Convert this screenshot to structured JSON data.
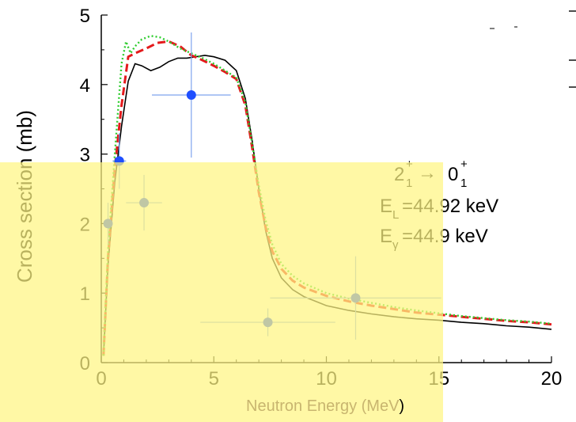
{
  "chart_data": {
    "type": "line",
    "title": "",
    "xlabel": "Neutron Energy (MeV)",
    "ylabel": "Cross section (mb)",
    "xlim": [
      0,
      20
    ],
    "ylim": [
      0,
      5
    ],
    "x_ticks": [
      "0",
      "5",
      "10",
      "15",
      "20"
    ],
    "y_ticks": [
      "0",
      "1",
      "2",
      "3",
      "4",
      "5"
    ],
    "grid": false,
    "annotation": {
      "transition_main": "2",
      "transition_main_sub": "1",
      "transition_main_sup": "+",
      "arrow": "→",
      "transition_final": "0",
      "transition_final_sub": "1",
      "transition_final_sup": "+",
      "level_prefix": "E",
      "level_sub": "L",
      "level_value": "=44.92 keV",
      "gamma_prefix": "E",
      "gamma_sub": "γ",
      "gamma_value": "=44.9 keV"
    },
    "series": [
      {
        "style": "solid",
        "color": "#000000",
        "x": [
          0.1,
          0.3,
          0.6,
          0.9,
          1.2,
          1.5,
          1.8,
          2.2,
          2.6,
          3.0,
          3.4,
          3.8,
          4.2,
          4.6,
          5.0,
          5.5,
          6.0,
          6.4,
          6.7,
          7.0,
          7.3,
          7.6,
          8.0,
          8.5,
          9.0,
          10.0,
          11.0,
          12.0,
          13.0,
          14.0,
          15.0,
          16.0,
          17.0,
          18.0,
          19.0,
          20.0
        ],
        "y": [
          0.1,
          1.4,
          2.6,
          3.4,
          4.05,
          4.3,
          4.27,
          4.2,
          4.25,
          4.33,
          4.38,
          4.38,
          4.4,
          4.42,
          4.4,
          4.35,
          4.2,
          3.8,
          3.2,
          2.5,
          1.9,
          1.5,
          1.22,
          1.05,
          0.95,
          0.82,
          0.75,
          0.7,
          0.66,
          0.63,
          0.61,
          0.58,
          0.56,
          0.53,
          0.51,
          0.48
        ]
      },
      {
        "style": "dashed",
        "color": "#e41a1c",
        "x": [
          0.1,
          0.3,
          0.6,
          0.9,
          1.2,
          1.5,
          2.0,
          2.5,
          3.0,
          3.5,
          4.0,
          4.5,
          5.0,
          5.5,
          6.0,
          6.4,
          6.7,
          7.0,
          7.3,
          7.6,
          8.0,
          8.5,
          9.0,
          10.0,
          11.0,
          12.0,
          13.0,
          14.0,
          15.0,
          16.0,
          17.0,
          18.0,
          19.0,
          20.0
        ],
        "y": [
          0.1,
          1.5,
          2.8,
          3.7,
          4.4,
          4.45,
          4.52,
          4.6,
          4.62,
          4.55,
          4.42,
          4.35,
          4.27,
          4.18,
          4.08,
          3.7,
          3.1,
          2.45,
          1.95,
          1.6,
          1.35,
          1.18,
          1.08,
          0.96,
          0.88,
          0.82,
          0.77,
          0.72,
          0.69,
          0.66,
          0.63,
          0.6,
          0.58,
          0.55
        ]
      },
      {
        "style": "dotted",
        "color": "#2ecc2e",
        "x": [
          0.1,
          0.3,
          0.6,
          0.9,
          1.1,
          1.3,
          1.5,
          1.8,
          2.2,
          2.6,
          3.0,
          3.5,
          4.0,
          4.5,
          5.0,
          5.5,
          6.0,
          6.4,
          6.7,
          7.0,
          7.3,
          7.6,
          8.0,
          8.5,
          9.0,
          10.0,
          11.0,
          12.0,
          13.0,
          14.0,
          15.0,
          16.0,
          17.0,
          18.0,
          19.0,
          20.0
        ],
        "y": [
          0.1,
          1.6,
          3.0,
          4.3,
          4.62,
          4.45,
          4.55,
          4.65,
          4.7,
          4.68,
          4.62,
          4.52,
          4.45,
          4.38,
          4.3,
          4.2,
          4.1,
          3.75,
          3.15,
          2.55,
          2.05,
          1.7,
          1.42,
          1.25,
          1.14,
          1.0,
          0.92,
          0.86,
          0.8,
          0.75,
          0.71,
          0.67,
          0.64,
          0.61,
          0.59,
          0.56
        ]
      }
    ],
    "points": [
      {
        "x": 0.3,
        "y": 2.0,
        "xerr": 0.2,
        "yerr": 0.3,
        "color": "#1f4fff"
      },
      {
        "x": 0.8,
        "y": 2.9,
        "xerr": 0.3,
        "yerr": 0.4,
        "color": "#1f4fff"
      },
      {
        "x": 1.9,
        "y": 2.3,
        "xerr": 0.8,
        "yerr": 0.4,
        "color": "#1f4fff"
      },
      {
        "x": 4.0,
        "y": 3.85,
        "xerr": 1.75,
        "yerr": 0.9,
        "color": "#1f4fff"
      },
      {
        "x": 7.4,
        "y": 0.58,
        "xerr": 3.0,
        "yerr": 0.2,
        "color": "#1f4fff"
      },
      {
        "x": 11.3,
        "y": 0.93,
        "xerr": 3.8,
        "yerr": 0.6,
        "color": "#1f4fff"
      }
    ]
  }
}
